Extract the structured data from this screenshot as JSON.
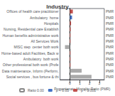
{
  "chart_data": {
    "type": "bar",
    "orientation": "horizontal",
    "title": "Industry",
    "xlabel": "Proportionate Mortality Ratio (PMR)",
    "categories": [
      "Offices of health care practitioner",
      "Ambulatory  home",
      "Hospitals",
      "Nursing, Residential care Establish",
      "Human benefits administrative work",
      "All Services Work",
      "MISC step  center both work",
      "Home-based adult Facilities, Back w",
      "Ambulatory  both work",
      "Other professional both work (Profe",
      "Data maintenance, Inform (Perform,",
      "Social services , bus fortune & thi"
    ],
    "values": [
      0.3,
      0.22,
      0.12,
      0.08,
      0.06,
      0.06,
      -0.5,
      0.06,
      0.06,
      0.06,
      1.2,
      2.2
    ],
    "colors": [
      "#c0504d",
      "#4472c4",
      "#c0504d",
      "#c0504d",
      "#c0504d",
      "#c0504d",
      "#aaaaaa",
      "#c0504d",
      "#c0504d",
      "#c0504d",
      "#aaaaaa",
      "#aaaaaa"
    ],
    "annotations": [
      "PMR",
      "PMR",
      "PMR",
      "PMR",
      "PMR",
      "PMR",
      "PMR",
      "PMR",
      "PMR",
      "PMR",
      "PMR",
      "PMR"
    ],
    "xlim": [
      -1.0,
      3.5
    ],
    "xticks": [
      0,
      1,
      2,
      3
    ],
    "grid": false,
    "legend": "bottom",
    "legend_entries": [
      {
        "label": "Ratio 0.00",
        "color": "#ffffff",
        "edgecolor": "#888888"
      },
      {
        "label": "p < 0.05",
        "color": "#4472c4"
      },
      {
        "label": "p < 0.001",
        "color": "#c0504d"
      }
    ]
  }
}
